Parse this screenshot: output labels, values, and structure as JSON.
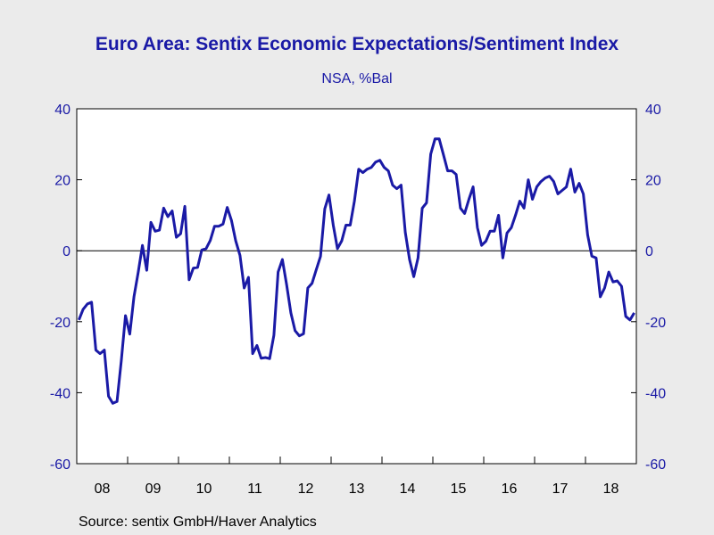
{
  "title": "Euro Area: Sentix Economic Expectations/Sentiment Index",
  "subtitle": "NSA, %Bal",
  "source": "Source:  sentix GmbH/Haver Analytics",
  "colors": {
    "line": "#1a1aa6",
    "plot_bg": "#ffffff",
    "page_bg": "#ebebeb",
    "axis_text": "#1a1aa6",
    "zero_line": "#000000"
  },
  "chart_data": {
    "type": "line",
    "title": "Euro Area: Sentix Economic Expectations/Sentiment Index",
    "subtitle": "NSA, %Bal",
    "xlabel": "",
    "ylabel": "",
    "ylim": [
      -60,
      40
    ],
    "y_ticks": [
      40,
      20,
      0,
      -20,
      -40,
      -60
    ],
    "y_axis_both_sides": true,
    "x_tick_labels": [
      "08",
      "09",
      "10",
      "11",
      "12",
      "13",
      "14",
      "15",
      "16",
      "17",
      "18"
    ],
    "x_start": "2008-01",
    "x_end": "2018-12",
    "grid": false,
    "reference_line": 0,
    "series": [
      {
        "frequency": "monthly",
        "start": "2008-01",
        "values": [
          -19.5,
          -16.5,
          -15,
          -14.5,
          -28,
          -29,
          -28,
          -41,
          -43,
          -42.5,
          -31,
          -18.3,
          -23.5,
          -13,
          -6,
          1.5,
          -5.5,
          8,
          5.5,
          5.8,
          12,
          9.6,
          11.2,
          3.8,
          4.8,
          12.5,
          -8.2,
          -4.9,
          -4.7,
          0.2,
          0.6,
          2.9,
          6.9,
          6.9,
          7.5,
          12.2,
          8.5,
          2.8,
          -1.3,
          -10.5,
          -7.5,
          -29,
          -26.7,
          -30.3,
          -30.1,
          -30.4,
          -23.8,
          -6,
          -2.5,
          -9.5,
          -17.5,
          -22.5,
          -24,
          -23.4,
          -10.5,
          -9.2,
          -5.3,
          -1.6,
          11.8,
          15.7,
          7.2,
          0.6,
          2.8,
          7.2,
          7.2,
          14,
          23,
          22,
          23,
          23.5,
          25,
          25.5,
          23.5,
          22.5,
          18.5,
          17.5,
          18.5,
          5.2,
          -2.5,
          -7.3,
          -2,
          12,
          13.5,
          27.2,
          31.5,
          31.5,
          27,
          22.5,
          22.5,
          21.5,
          12,
          10.5,
          14.5,
          18,
          6.5,
          1.5,
          2.7,
          5.5,
          5.5,
          10,
          -2,
          5,
          6.5,
          10,
          14,
          12,
          20,
          14.5,
          18,
          19.5,
          20.5,
          21,
          19.5,
          16,
          17,
          18,
          23,
          16.5,
          19,
          16,
          4.5,
          -1.5,
          -2,
          -13,
          -10.5,
          -6,
          -8.8,
          -8.5,
          -10,
          -18.5,
          -19.5,
          -17.5
        ]
      }
    ]
  }
}
